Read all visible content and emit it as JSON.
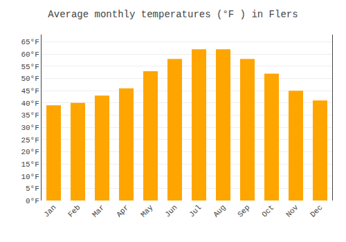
{
  "chart_data": {
    "type": "bar",
    "title": "Average monthly temperatures (°F ) in Flers",
    "categories": [
      "Jan",
      "Feb",
      "Mar",
      "Apr",
      "May",
      "Jun",
      "Jul",
      "Aug",
      "Sep",
      "Oct",
      "Nov",
      "Dec"
    ],
    "values": [
      39,
      40,
      43,
      46,
      53,
      58,
      62,
      62,
      58,
      52,
      45,
      41
    ],
    "color": "#FFA500",
    "ylim": [
      0,
      68
    ],
    "yticks": [
      {
        "value": 0,
        "label": "0°F"
      },
      {
        "value": 5,
        "label": "5°F"
      },
      {
        "value": 10,
        "label": "10°F"
      },
      {
        "value": 15,
        "label": "15°F"
      },
      {
        "value": 20,
        "label": "20°F"
      },
      {
        "value": 25,
        "label": "25°F"
      },
      {
        "value": 30,
        "label": "30°F"
      },
      {
        "value": 35,
        "label": "35°F"
      },
      {
        "value": 40,
        "label": "40°F"
      },
      {
        "value": 45,
        "label": "45°F"
      },
      {
        "value": 50,
        "label": "50°F"
      },
      {
        "value": 55,
        "label": "55°F"
      },
      {
        "value": 60,
        "label": "60°F"
      },
      {
        "value": 65,
        "label": "65°F"
      }
    ],
    "grid": true
  }
}
